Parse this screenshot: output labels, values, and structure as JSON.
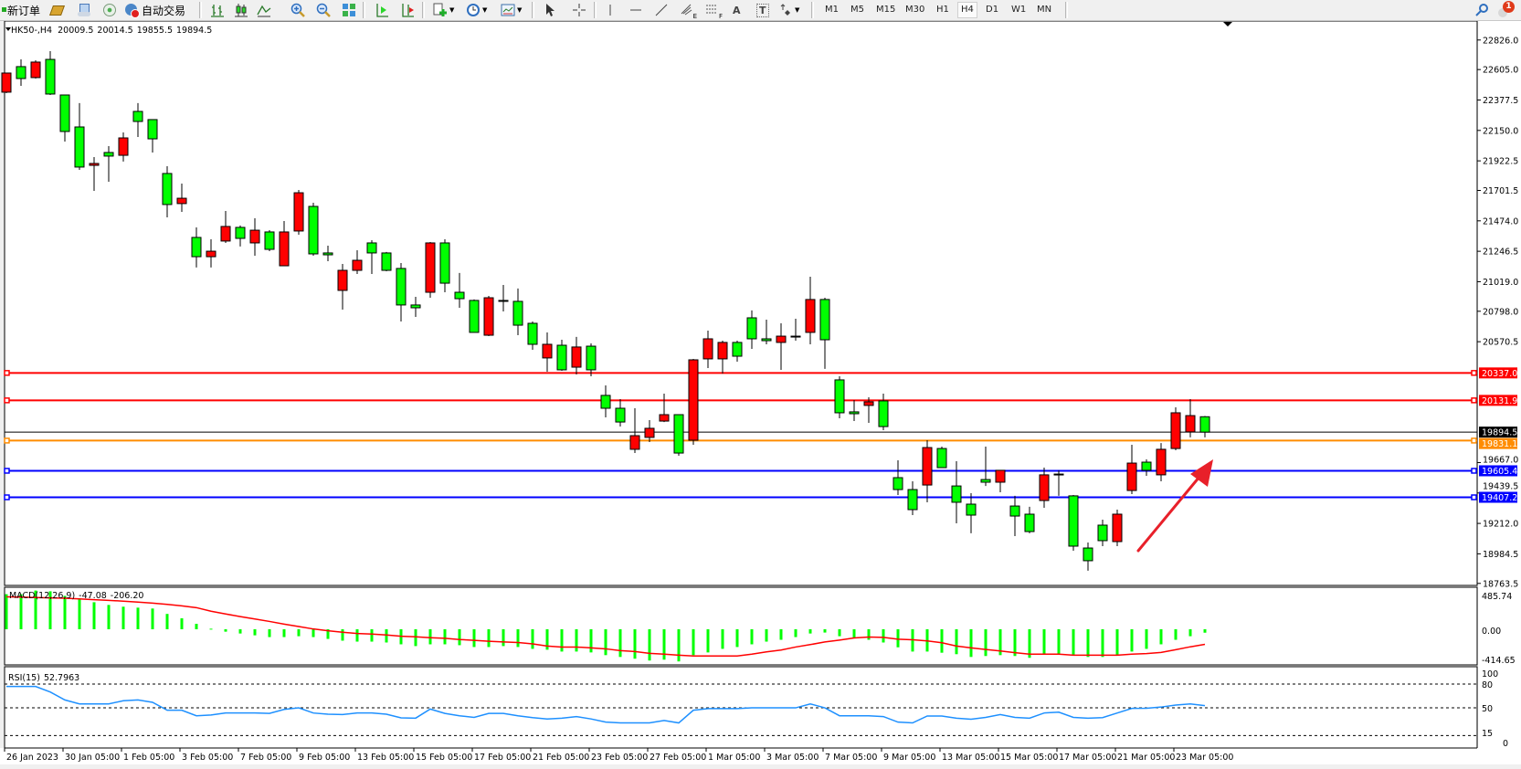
{
  "toolbar": {
    "new_order": "新订单",
    "auto_trading": "自动交易",
    "icons": [
      "new-order-icon",
      "gold-bars-icon",
      "market-watch-icon",
      "signals-icon",
      "auto-trading-icon",
      "bar-chart-icon",
      "candlestick-icon",
      "line-chart-icon",
      "zoom-in-icon",
      "zoom-out-icon",
      "tile-windows-icon",
      "auto-scroll-icon",
      "chart-shift-icon",
      "new-indicator-icon",
      "periods-clock-icon",
      "templates-icon",
      "cursor-icon",
      "crosshair-icon",
      "vertical-line-icon",
      "horizontal-line-icon",
      "trendline-icon",
      "fibonacci-icon",
      "fibonacci-fan-icon",
      "text-icon",
      "text-label-icon",
      "arrows-icon",
      "search-icon",
      "notifications-icon"
    ],
    "draw_letters": {
      "fib_expansion": "E",
      "fib_f": "F",
      "text": "A",
      "label": "T"
    },
    "timeframes": [
      "M1",
      "M5",
      "M15",
      "M30",
      "H1",
      "H4",
      "D1",
      "W1",
      "MN"
    ],
    "active_timeframe": "H4",
    "notification_count": "1"
  },
  "chart": {
    "symbol": "HK50-,H4",
    "open": "20009.5",
    "high": "20014.5",
    "low": "19855.5",
    "close": "19894.5",
    "colors": {
      "bull": "#ff0000",
      "bear": "#00ff00",
      "wick": "#000000",
      "macd_hist": "#00ff00",
      "macd_signal": "#ff0000",
      "rsi": "#1e90ff",
      "arrow": "#e8202a"
    }
  },
  "chart_data": {
    "type": "candlestick",
    "price_axis_ticks": [
      "22826.0",
      "22605.0",
      "22377.5",
      "22150.0",
      "21922.5",
      "21701.5",
      "21474.0",
      "21246.5",
      "21019.0",
      "20798.0",
      "20570.5",
      "19667.0",
      "19439.5",
      "19212.0",
      "18984.5",
      "18763.5"
    ],
    "price_range": [
      18748,
      22968
    ],
    "horizontal_lines": [
      {
        "price": "20337.0",
        "color": "#ff0000"
      },
      {
        "price": "20131.9",
        "color": "#ff0000"
      },
      {
        "price": "19894.5",
        "color": "#000000",
        "kind": "bid"
      },
      {
        "price": "19831.1",
        "color": "#ff8c00"
      },
      {
        "price": "19605.4",
        "color": "#0000ff"
      },
      {
        "price": "19407.2",
        "color": "#0000ff"
      }
    ],
    "date_labels": [
      "26 Jan 2023",
      "30 Jan 05:00",
      "1 Feb 05:00",
      "3 Feb 05:00",
      "7 Feb 05:00",
      "9 Feb 05:00",
      "13 Feb 05:00",
      "15 Feb 05:00",
      "17 Feb 05:00",
      "21 Feb 05:00",
      "23 Feb 05:00",
      "27 Feb 05:00",
      "1 Mar 05:00",
      "3 Mar 05:00",
      "7 Mar 05:00",
      "9 Mar 05:00",
      "13 Mar 05:00",
      "15 Mar 05:00",
      "17 Mar 05:00",
      "21 Mar 05:00",
      "23 Mar 05:00"
    ],
    "date_label_every_n_bars": 4,
    "ohlc_columns": [
      "open",
      "high",
      "low",
      "close"
    ],
    "candles": [
      [
        22436,
        22579,
        22429,
        22579
      ],
      [
        22627,
        22681,
        22483,
        22538
      ],
      [
        22545,
        22674,
        22538,
        22661
      ],
      [
        22681,
        22743,
        22415,
        22422
      ],
      [
        22415,
        22415,
        22067,
        22142
      ],
      [
        22176,
        22354,
        21855,
        21876
      ],
      [
        21889,
        21951,
        21698,
        21903
      ],
      [
        21985,
        22033,
        21766,
        21958
      ],
      [
        21964,
        22135,
        21917,
        22094
      ],
      [
        22292,
        22354,
        22101,
        22217
      ],
      [
        22231,
        22231,
        21985,
        22087
      ],
      [
        21828,
        21882,
        21500,
        21596
      ],
      [
        21603,
        21753,
        21541,
        21643
      ],
      [
        21350,
        21425,
        21125,
        21206
      ],
      [
        21206,
        21336,
        21125,
        21247
      ],
      [
        21323,
        21548,
        21309,
        21432
      ],
      [
        21425,
        21439,
        21282,
        21343
      ],
      [
        21309,
        21493,
        21213,
        21404
      ],
      [
        21391,
        21404,
        21247,
        21261
      ],
      [
        21138,
        21473,
        21138,
        21391
      ],
      [
        21398,
        21705,
        21370,
        21684
      ],
      [
        21582,
        21609,
        21213,
        21227
      ],
      [
        21234,
        21288,
        21172,
        21220
      ],
      [
        20954,
        21152,
        20810,
        21104
      ],
      [
        21104,
        21254,
        21077,
        21179
      ],
      [
        21309,
        21329,
        21077,
        21234
      ],
      [
        21234,
        21241,
        21097,
        21104
      ],
      [
        21118,
        21159,
        20722,
        20845
      ],
      [
        20845,
        20906,
        20756,
        20824
      ],
      [
        20940,
        21316,
        20899,
        21309
      ],
      [
        21309,
        21336,
        20940,
        21008
      ],
      [
        20940,
        21084,
        20824,
        20892
      ],
      [
        20879,
        20886,
        20640,
        20640
      ],
      [
        20619,
        20913,
        20612,
        20899
      ],
      [
        20879,
        20995,
        20797,
        20872
      ],
      [
        20872,
        20968,
        20619,
        20694
      ],
      [
        20708,
        20722,
        20510,
        20551
      ],
      [
        20449,
        20640,
        20346,
        20551
      ],
      [
        20544,
        20585,
        20353,
        20360
      ],
      [
        20380,
        20606,
        20326,
        20531
      ],
      [
        20537,
        20558,
        20312,
        20360
      ],
      [
        20169,
        20244,
        20005,
        20073
      ],
      [
        20073,
        20141,
        19936,
        19970
      ],
      [
        19766,
        20073,
        19738,
        19868
      ],
      [
        19855,
        19984,
        19820,
        19923
      ],
      [
        19977,
        20182,
        19970,
        20025
      ],
      [
        20025,
        20025,
        19718,
        19738
      ],
      [
        19834,
        20442,
        19800,
        20435
      ],
      [
        20442,
        20653,
        20373,
        20592
      ],
      [
        20442,
        20578,
        20332,
        20565
      ],
      [
        20565,
        20578,
        20421,
        20462
      ],
      [
        20749,
        20804,
        20517,
        20592
      ],
      [
        20592,
        20735,
        20551,
        20578
      ],
      [
        20565,
        20708,
        20360,
        20612
      ],
      [
        20612,
        20742,
        20578,
        20606
      ],
      [
        20640,
        21056,
        20551,
        20886
      ],
      [
        20886,
        20899,
        20367,
        20585
      ],
      [
        20285,
        20312,
        19998,
        20039
      ],
      [
        20046,
        20134,
        19977,
        20032
      ],
      [
        20094,
        20155,
        19964,
        20121
      ],
      [
        20128,
        20182,
        19909,
        19936
      ],
      [
        19554,
        19684,
        19424,
        19465
      ],
      [
        19465,
        19527,
        19274,
        19315
      ],
      [
        19499,
        19834,
        19370,
        19779
      ],
      [
        19772,
        19786,
        19629,
        19629
      ],
      [
        19492,
        19677,
        19213,
        19370
      ],
      [
        19356,
        19438,
        19138,
        19274
      ],
      [
        19540,
        19786,
        19492,
        19520
      ],
      [
        19520,
        19609,
        19445,
        19609
      ],
      [
        19342,
        19418,
        19117,
        19267
      ],
      [
        19281,
        19336,
        19138,
        19151
      ],
      [
        19383,
        19629,
        19329,
        19575
      ],
      [
        19575,
        19609,
        19418,
        19581
      ],
      [
        19418,
        19424,
        19008,
        19042
      ],
      [
        19028,
        19069,
        18858,
        18933
      ],
      [
        19199,
        19240,
        19042,
        19083
      ],
      [
        19076,
        19315,
        19042,
        19281
      ],
      [
        19458,
        19800,
        19431,
        19663
      ],
      [
        19670,
        19691,
        19568,
        19609
      ],
      [
        19575,
        19813,
        19527,
        19766
      ],
      [
        19772,
        20080,
        19759,
        20039
      ],
      [
        19896,
        20141,
        19855,
        20018
      ],
      [
        20009.5,
        20014.5,
        19855.5,
        19894.5
      ]
    ],
    "macd": {
      "label": "MACD(12,26,9)",
      "main_value": "-47.08",
      "signal_value": "-206.20",
      "axis_ticks": [
        "485.74",
        "0.00",
        "-414.65"
      ],
      "histogram": [
        480,
        480,
        530,
        520,
        457,
        420,
        370,
        333,
        309,
        296,
        284,
        210,
        150,
        74,
        8,
        -33,
        -58,
        -83,
        -107,
        -107,
        -95,
        -107,
        -132,
        -156,
        -169,
        -169,
        -181,
        -206,
        -230,
        -206,
        -206,
        -218,
        -243,
        -243,
        -230,
        -243,
        -268,
        -280,
        -305,
        -305,
        -317,
        -354,
        -379,
        -403,
        -428,
        -416,
        -440,
        -354,
        -317,
        -268,
        -243,
        -206,
        -169,
        -144,
        -107,
        -58,
        -45,
        -95,
        -119,
        -144,
        -181,
        -247,
        -305,
        -305,
        -321,
        -341,
        -379,
        -366,
        -354,
        -366,
        -391,
        -333,
        -333,
        -354,
        -379,
        -379,
        -354,
        -305,
        -268,
        -206,
        -144,
        -95,
        -47.08
      ],
      "signal": [
        444,
        440,
        435,
        430,
        425,
        415,
        405,
        395,
        385,
        372,
        358,
        340,
        320,
        296,
        247,
        210,
        173,
        140,
        107,
        70,
        37,
        4,
        -21,
        -41,
        -58,
        -66,
        -78,
        -95,
        -103,
        -115,
        -123,
        -140,
        -152,
        -164,
        -173,
        -181,
        -200,
        -230,
        -243,
        -243,
        -255,
        -268,
        -292,
        -305,
        -329,
        -341,
        -354,
        -366,
        -366,
        -366,
        -366,
        -341,
        -309,
        -284,
        -243,
        -210,
        -173,
        -148,
        -119,
        -107,
        -111,
        -136,
        -144,
        -160,
        -185,
        -230,
        -255,
        -276,
        -297,
        -321,
        -341,
        -341,
        -341,
        -354,
        -354,
        -354,
        -354,
        -341,
        -333,
        -317,
        -280,
        -240,
        -206.2
      ]
    },
    "rsi": {
      "label": "RSI(15)",
      "value": "52.7963",
      "axis_ticks": [
        "100",
        "80",
        "50",
        "15",
        "0"
      ],
      "levels": [
        80,
        50,
        15
      ],
      "range": [
        0,
        100
      ],
      "values": [
        77,
        77,
        77,
        70,
        60,
        55,
        55,
        55,
        59,
        60,
        57,
        47,
        47,
        40,
        41,
        43.5,
        43.5,
        43.5,
        43,
        48,
        50,
        43.5,
        42,
        41.5,
        43.5,
        43.5,
        42,
        37.4,
        37,
        48.5,
        43,
        40,
        38,
        43,
        43,
        40,
        37.7,
        36,
        37,
        39,
        36,
        32,
        31,
        31,
        31,
        34,
        31,
        47,
        49,
        49,
        49,
        50,
        50,
        50,
        50,
        55,
        50,
        40,
        40,
        40,
        39,
        32,
        31,
        39.7,
        39.7,
        37,
        35.7,
        38,
        41.5,
        38,
        37,
        43.5,
        44.6,
        38,
        37,
        37.7,
        43.5,
        49.3,
        49.5,
        51,
        53.5,
        55,
        52.7963
      ]
    }
  }
}
